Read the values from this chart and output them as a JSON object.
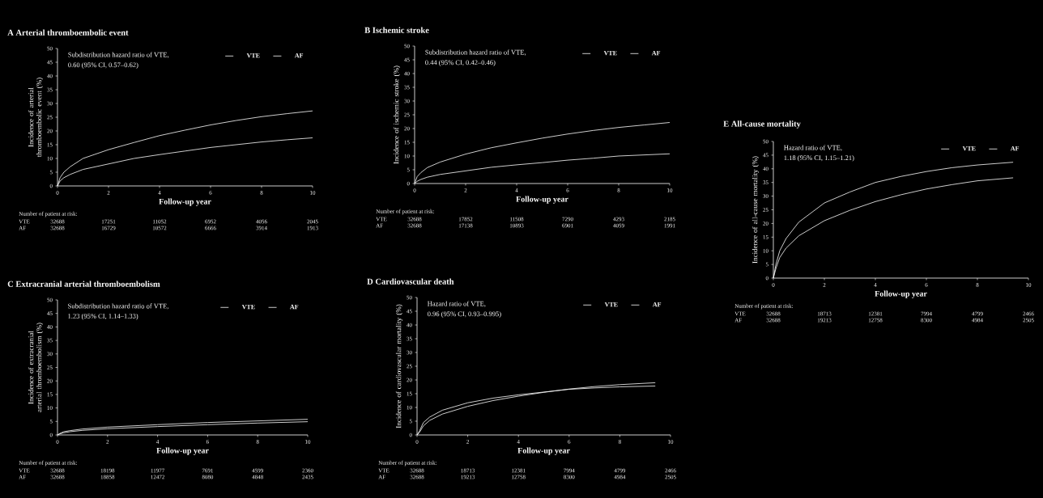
{
  "chart_data": [
    {
      "type": "line",
      "title": "A Arterial thromboembolic event",
      "xlabel": "Follow-up year",
      "ylabel": "Incidence of arterial thromboembolic event (%)",
      "xlim": [
        0,
        10
      ],
      "ylim": [
        0,
        50
      ],
      "xticks": [
        0,
        2,
        4,
        6,
        8,
        10
      ],
      "yticks": [
        0,
        5,
        10,
        15,
        20,
        25,
        30,
        35,
        40,
        45,
        50
      ],
      "legend": "top right",
      "annotations": [
        "Subdistribution hazard ratio of VTE,",
        "0.60 (95% CI, 0.57–0.62)",
        "Number of patient at risk:",
        "VTE",
        "32688",
        "17251",
        "11052",
        "6952",
        "4056",
        "2045",
        "AF",
        "32688",
        "16729",
        "10572",
        "6666",
        "3914",
        "1913"
      ],
      "series": [
        {
          "name": "VTE",
          "color": "#ffffff",
          "x": [
            0,
            0.1,
            0.25,
            0.5,
            1,
            2,
            3,
            4,
            5,
            6,
            7,
            8,
            9,
            10
          ],
          "values": [
            0,
            1.8,
            3,
            4.2,
            6,
            8,
            10,
            11.4,
            12.7,
            14,
            15,
            16,
            16.8,
            17.5
          ]
        },
        {
          "name": "AF",
          "color": "#ffffff",
          "x": [
            0,
            0.1,
            0.25,
            0.5,
            1,
            2,
            3,
            4,
            5,
            6,
            7,
            8,
            9,
            10
          ],
          "values": [
            0,
            3,
            5,
            7,
            10,
            13.2,
            15.8,
            18.3,
            20.3,
            22.2,
            23.8,
            25.2,
            26.3,
            27.3
          ]
        }
      ]
    },
    {
      "type": "line",
      "title": "B Ischemic stroke",
      "xlabel": "Follow-up year",
      "ylabel": "Incidence of ischemic stroke (%)",
      "xlim": [
        0,
        10
      ],
      "ylim": [
        0,
        50
      ],
      "xticks": [
        0,
        2,
        4,
        6,
        8,
        10
      ],
      "yticks": [
        0,
        5,
        10,
        15,
        20,
        25,
        30,
        35,
        40,
        45,
        50
      ],
      "legend": "top right",
      "annotations": [
        "Subdistribution hazard ratio of VTE,",
        "0.44 (95% CI, 0.42–0.46)",
        "Number of patient at risk:",
        "VTE",
        "32688",
        "17852",
        "11508",
        "7290",
        "4293",
        "2185",
        "AF",
        "32688",
        "17138",
        "10893",
        "6901",
        "4059",
        "1991"
      ],
      "series": [
        {
          "name": "VTE",
          "color": "#ffffff",
          "x": [
            0,
            0.1,
            0.25,
            0.5,
            1,
            2,
            3,
            4,
            5,
            6,
            7,
            8,
            9,
            10
          ],
          "values": [
            0,
            0.8,
            1.5,
            2.3,
            3.3,
            4.6,
            5.9,
            6.8,
            7.6,
            8.5,
            9.2,
            10,
            10.4,
            10.8
          ]
        },
        {
          "name": "AF",
          "color": "#ffffff",
          "x": [
            0,
            0.1,
            0.25,
            0.5,
            1,
            2,
            3,
            4,
            5,
            6,
            7,
            8,
            9,
            10
          ],
          "values": [
            0,
            2.5,
            4,
            5.8,
            7.8,
            10.7,
            13,
            14.8,
            16.5,
            18,
            19.3,
            20.4,
            21.3,
            22.2
          ]
        }
      ]
    },
    {
      "type": "line",
      "title": "C Extracranial arterial thromboembolism",
      "xlabel": "Follow-up year",
      "ylabel": "Incidence of extracranial arterial thromboembolism (%)",
      "xlim": [
        0,
        10
      ],
      "ylim": [
        0,
        50
      ],
      "xticks": [
        0,
        2,
        4,
        6,
        8,
        10
      ],
      "yticks": [
        0,
        5,
        10,
        15,
        20,
        25,
        30,
        35,
        40,
        45,
        50
      ],
      "legend": "top right",
      "annotations": [
        "Subdistribution hazard ratio of VTE,",
        "1.23 (95% CI, 1.14–1.33)",
        "Number of patient at risk:",
        "VTE",
        "32688",
        "18198",
        "11977",
        "7691",
        "4599",
        "2360",
        "AF",
        "32688",
        "18858",
        "12472",
        "8080",
        "4848",
        "2435"
      ],
      "series": [
        {
          "name": "VTE",
          "color": "#ffffff",
          "x": [
            0,
            0.1,
            0.25,
            0.5,
            1,
            2,
            4,
            6,
            8,
            10
          ],
          "values": [
            0,
            0.6,
            1.2,
            1.6,
            2.2,
            2.9,
            3.8,
            4.6,
            5.2,
            5.8
          ]
        },
        {
          "name": "AF",
          "color": "#ffffff",
          "x": [
            0,
            0.1,
            0.25,
            0.5,
            1,
            2,
            4,
            6,
            8,
            10
          ],
          "values": [
            0,
            0.4,
            0.8,
            1.2,
            1.7,
            2.3,
            3.1,
            3.8,
            4.4,
            4.9
          ]
        }
      ]
    },
    {
      "type": "line",
      "title": "D Cardiovascular death",
      "xlabel": "Follow-up year",
      "ylabel": "Incidence of cardiovascular mortality (%)",
      "xlim": [
        0,
        10
      ],
      "ylim": [
        0,
        50
      ],
      "xticks": [
        0,
        2,
        4,
        6,
        8,
        10
      ],
      "yticks": [
        0,
        5,
        10,
        15,
        20,
        25,
        30,
        35,
        40,
        45,
        50
      ],
      "legend": "top right",
      "annotations": [
        "Hazard ratio of VTE,",
        "0.96 (95% CI, 0.93–0.995)",
        "Number of patient at risk:",
        "VTE",
        "32688",
        "18713",
        "12381",
        "7994",
        "4799",
        "2466",
        "AF",
        "32688",
        "19213",
        "12758",
        "8300",
        "4984",
        "2505"
      ],
      "series": [
        {
          "name": "VTE",
          "color": "#ffffff",
          "x": [
            0,
            0.1,
            0.25,
            0.5,
            1,
            2,
            3,
            4,
            5,
            6,
            7,
            8,
            9.4
          ],
          "values": [
            0,
            1,
            3.3,
            5.3,
            7.6,
            10.4,
            12.5,
            14.1,
            15.5,
            16.7,
            17.6,
            18.3,
            19
          ]
        },
        {
          "name": "AF",
          "color": "#ffffff",
          "x": [
            0,
            0.1,
            0.25,
            0.5,
            1,
            2,
            3,
            4,
            5,
            6,
            7,
            8,
            9.4
          ],
          "values": [
            0,
            1.5,
            4.5,
            6.5,
            9,
            11.7,
            13.4,
            14.6,
            15.6,
            16.6,
            17.1,
            17.5,
            17.8
          ]
        }
      ]
    },
    {
      "type": "line",
      "title": "E All-cause mortality",
      "xlabel": "Follow-up year",
      "ylabel": "Incidence of all-cause mortality (%)",
      "xlim": [
        0,
        10
      ],
      "ylim": [
        0,
        50
      ],
      "xticks": [
        0,
        2,
        4,
        6,
        8,
        10
      ],
      "yticks": [
        0,
        5,
        10,
        15,
        20,
        25,
        30,
        35,
        40,
        45,
        50
      ],
      "legend": "top right",
      "annotations": [
        "Hazard ratio of VTE,",
        "1.18 (95% CI, 1.15–1.21)",
        "Number of patient at risk:",
        "VTE",
        "32688",
        "18713",
        "12381",
        "7994",
        "4799",
        "2466",
        "AF",
        "32688",
        "19213",
        "12758",
        "8300",
        "4984",
        "2505"
      ],
      "series": [
        {
          "name": "VTE",
          "color": "#ffffff",
          "x": [
            0,
            0.1,
            0.25,
            0.5,
            1,
            2,
            3,
            4,
            5,
            6,
            7,
            8,
            9.4
          ],
          "values": [
            0,
            5,
            10,
            14.5,
            20.5,
            27.5,
            31.5,
            35,
            37.2,
            39,
            40.4,
            41.4,
            42.4
          ]
        },
        {
          "name": "AF",
          "color": "#ffffff",
          "x": [
            0,
            0.1,
            0.25,
            0.5,
            1,
            2,
            3,
            4,
            5,
            6,
            7,
            8,
            9.4
          ],
          "values": [
            0,
            3.5,
            7.5,
            11,
            15.5,
            21,
            24.8,
            28,
            30.5,
            32.6,
            34.2,
            35.6,
            36.7
          ]
        }
      ]
    }
  ]
}
